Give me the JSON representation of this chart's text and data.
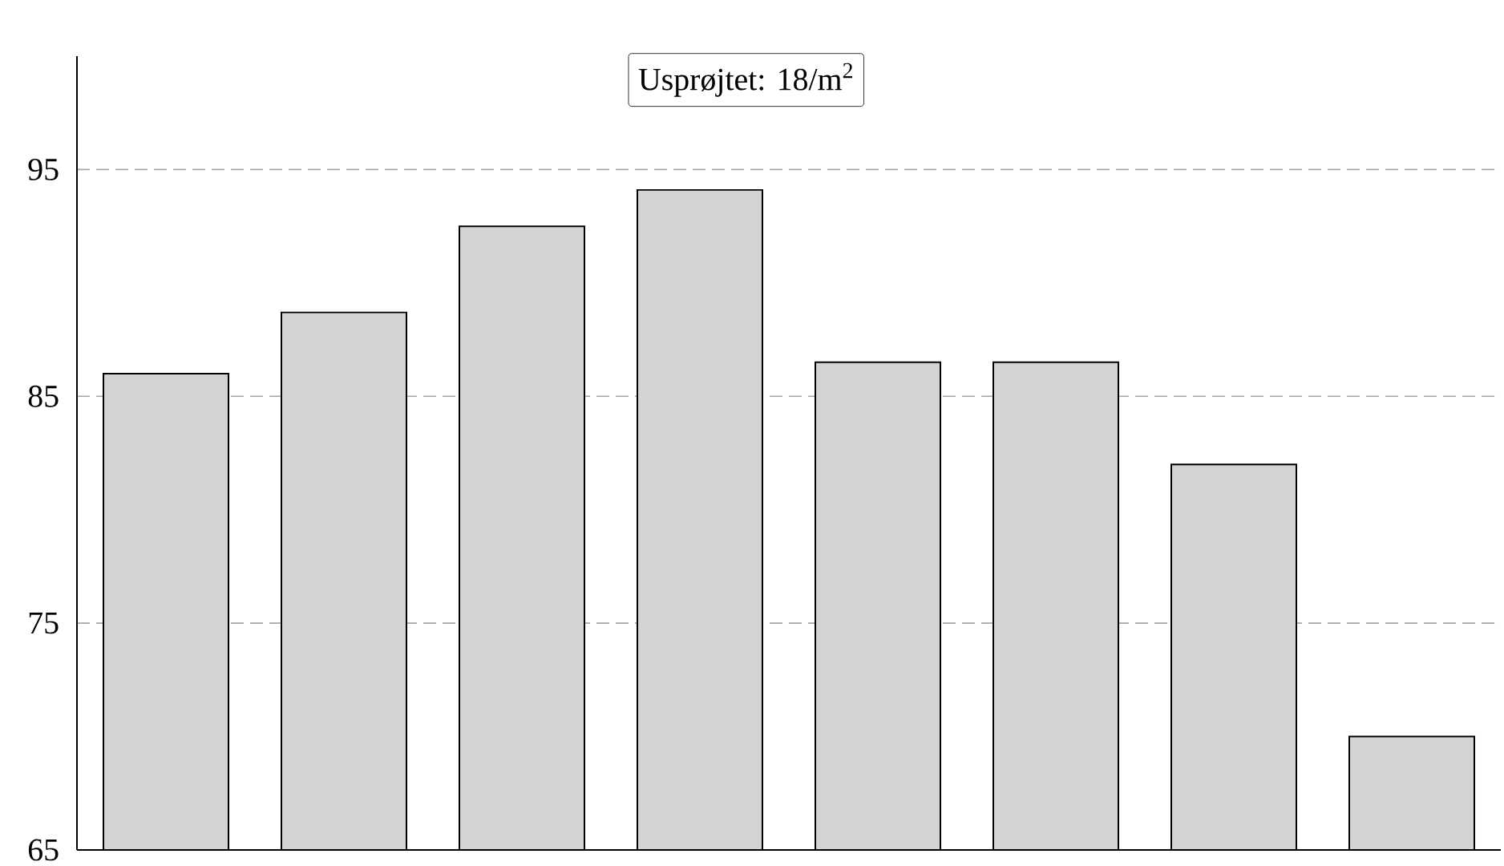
{
  "chart_data": {
    "type": "bar",
    "annotations": [
      "Usprøjtet: 18/m$^{2}$"
    ],
    "categories": [
      null,
      null,
      null,
      null,
      null,
      null,
      null,
      null
    ],
    "values": [
      86,
      88.7,
      92.5,
      94.1,
      86.5,
      86.5,
      82,
      70
    ],
    "color": "#d3d3d3",
    "ylim": [
      65,
      100
    ],
    "yticks": [
      65,
      75,
      85,
      95
    ],
    "grid": "y"
  }
}
